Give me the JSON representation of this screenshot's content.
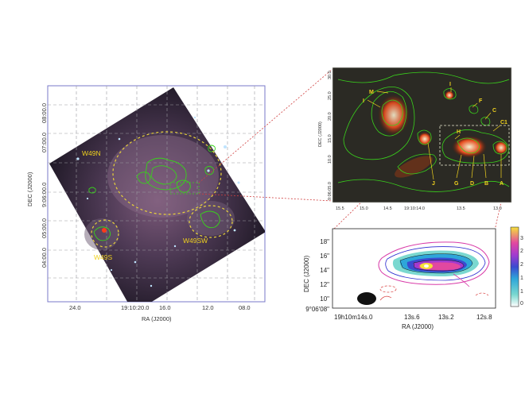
{
  "left_panel": {
    "xlabel": "RA (J2000)",
    "ylabel": "DEC (J2000)",
    "x_ticks": [
      "24.0",
      "19:10:20.0",
      "16.0",
      "12.0",
      "08.0"
    ],
    "y_ticks": [
      "08:00.0",
      "07:00.0",
      "9:06:00.0",
      "05:00.0",
      "04:00.0"
    ],
    "regions": [
      "W49N",
      "W49S",
      "W49SW"
    ],
    "colors": {
      "ellipse": "#e8d23a",
      "contour": "#39d21c",
      "label": "#f0d21e"
    }
  },
  "top_right_panel": {
    "ylabel": "DEC (J2000)",
    "x_ticks": [
      "15.5",
      "15.0",
      "14.5",
      "19:10:14.0",
      "13.5",
      "13.0"
    ],
    "y_ticks": [
      "30.0",
      "25.0",
      "20.0",
      "15.0",
      "10.0",
      "9:06:05.0"
    ],
    "source_labels": [
      "M",
      "I",
      "I",
      "F",
      "C",
      "C1",
      "H",
      "J",
      "G",
      "D",
      "B",
      "A"
    ]
  },
  "bottom_right_panel": {
    "xlabel": "RA (J2000)",
    "ylabel": "DEC (J2000)",
    "x_ticks": [
      "19h10m14s.0",
      "13s.6",
      "13s.2",
      "12s.8"
    ],
    "y_ticks": [
      "18\"",
      "16\"",
      "14\"",
      "12\"",
      "10\"",
      "9°06'08\""
    ],
    "colorbar_ticks": [
      "3",
      "2",
      "2",
      "1",
      "1",
      "0"
    ]
  }
}
